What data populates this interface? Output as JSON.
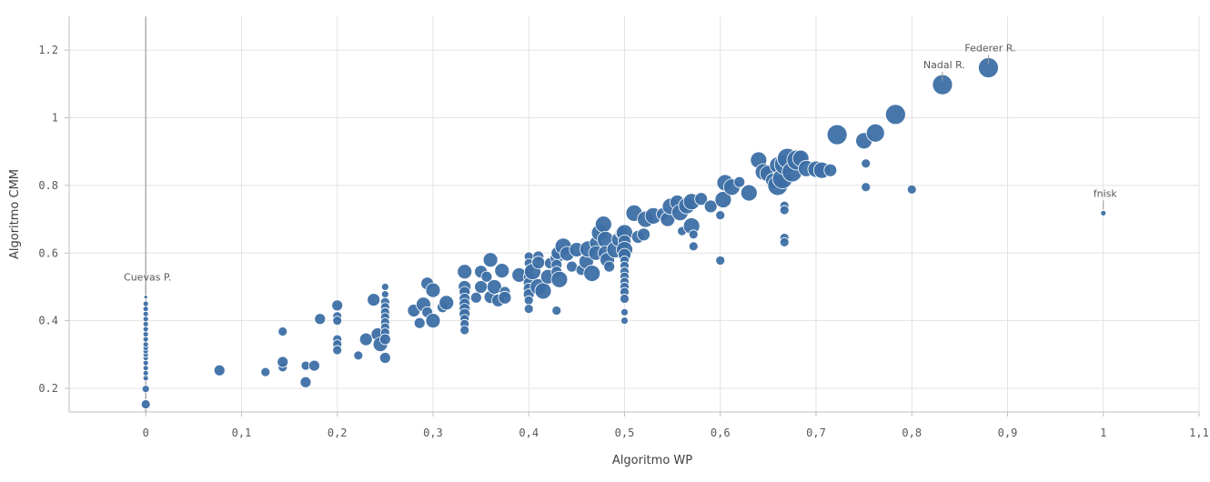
{
  "chart_data": {
    "type": "scatter",
    "title": "",
    "xlabel": "Algoritmo WP",
    "ylabel": "Algoritmo CMM",
    "xlim": [
      -0.08,
      1.1
    ],
    "ylim": [
      0.13,
      1.3
    ],
    "x_ticks": [
      0,
      0.1,
      0.2,
      0.3,
      0.4,
      0.5,
      0.6,
      0.7,
      0.8,
      0.9,
      1,
      1.1
    ],
    "x_tick_labels": [
      "0",
      "0,1",
      "0,2",
      "0,3",
      "0,4",
      "0,5",
      "0,6",
      "0,7",
      "0,8",
      "0,9",
      "1",
      "1,1"
    ],
    "y_ticks": [
      0.2,
      0.4,
      0.6,
      0.8,
      1,
      1.2
    ],
    "y_tick_labels": [
      "0.2",
      "0.4",
      "0.6",
      "0.8",
      "1",
      "1.2"
    ],
    "grid": true,
    "color": "#3d6fa5",
    "labels": [
      {
        "text": "Cuevas P.",
        "x": 0,
        "y": 0.47
      },
      {
        "text": "Nadal R.",
        "x": 0.832,
        "y": 1.098
      },
      {
        "text": "Federer R.",
        "x": 0.88,
        "y": 1.148
      },
      {
        "text": "fnisk",
        "x": 1.0,
        "y": 0.718
      }
    ],
    "points": [
      [
        0,
        0.153,
        5
      ],
      [
        0,
        0.198,
        4
      ],
      [
        0,
        0.23,
        3
      ],
      [
        0,
        0.245,
        3
      ],
      [
        0,
        0.26,
        3
      ],
      [
        0,
        0.275,
        3
      ],
      [
        0,
        0.29,
        3
      ],
      [
        0,
        0.3,
        3
      ],
      [
        0,
        0.31,
        3
      ],
      [
        0,
        0.32,
        3
      ],
      [
        0,
        0.33,
        3
      ],
      [
        0,
        0.345,
        3
      ],
      [
        0,
        0.36,
        3
      ],
      [
        0,
        0.375,
        3
      ],
      [
        0,
        0.39,
        3
      ],
      [
        0,
        0.405,
        3
      ],
      [
        0,
        0.42,
        3
      ],
      [
        0,
        0.435,
        3
      ],
      [
        0,
        0.45,
        3
      ],
      [
        0,
        0.47,
        2
      ],
      [
        0.077,
        0.253,
        6
      ],
      [
        0.125,
        0.248,
        5
      ],
      [
        0.143,
        0.262,
        5
      ],
      [
        0.143,
        0.278,
        6
      ],
      [
        0.143,
        0.368,
        5
      ],
      [
        0.167,
        0.218,
        6
      ],
      [
        0.167,
        0.267,
        5
      ],
      [
        0.176,
        0.267,
        6
      ],
      [
        0.182,
        0.405,
        6
      ],
      [
        0.2,
        0.445,
        6
      ],
      [
        0.2,
        0.413,
        5
      ],
      [
        0.2,
        0.4,
        5
      ],
      [
        0.2,
        0.345,
        5
      ],
      [
        0.2,
        0.33,
        5
      ],
      [
        0.2,
        0.313,
        5
      ],
      [
        0.222,
        0.297,
        5
      ],
      [
        0.23,
        0.345,
        7
      ],
      [
        0.238,
        0.462,
        7
      ],
      [
        0.242,
        0.36,
        7
      ],
      [
        0.245,
        0.33,
        8
      ],
      [
        0.25,
        0.5,
        4
      ],
      [
        0.25,
        0.478,
        4
      ],
      [
        0.25,
        0.455,
        5
      ],
      [
        0.25,
        0.44,
        5
      ],
      [
        0.25,
        0.425,
        5
      ],
      [
        0.25,
        0.41,
        5
      ],
      [
        0.25,
        0.395,
        5
      ],
      [
        0.25,
        0.38,
        5
      ],
      [
        0.25,
        0.365,
        5
      ],
      [
        0.25,
        0.345,
        6
      ],
      [
        0.25,
        0.29,
        6
      ],
      [
        0.28,
        0.43,
        7
      ],
      [
        0.286,
        0.393,
        6
      ],
      [
        0.29,
        0.448,
        8
      ],
      [
        0.294,
        0.51,
        7
      ],
      [
        0.294,
        0.425,
        6
      ],
      [
        0.3,
        0.49,
        8
      ],
      [
        0.3,
        0.4,
        8
      ],
      [
        0.31,
        0.44,
        6
      ],
      [
        0.314,
        0.453,
        8
      ],
      [
        0.333,
        0.545,
        8
      ],
      [
        0.333,
        0.5,
        7
      ],
      [
        0.333,
        0.485,
        6
      ],
      [
        0.333,
        0.465,
        6
      ],
      [
        0.333,
        0.45,
        6
      ],
      [
        0.333,
        0.435,
        6
      ],
      [
        0.333,
        0.42,
        6
      ],
      [
        0.333,
        0.405,
        5
      ],
      [
        0.333,
        0.39,
        5
      ],
      [
        0.333,
        0.372,
        5
      ],
      [
        0.345,
        0.468,
        6
      ],
      [
        0.35,
        0.545,
        7
      ],
      [
        0.35,
        0.5,
        7
      ],
      [
        0.356,
        0.53,
        6
      ],
      [
        0.36,
        0.58,
        8
      ],
      [
        0.36,
        0.47,
        7
      ],
      [
        0.364,
        0.5,
        8
      ],
      [
        0.368,
        0.46,
        7
      ],
      [
        0.372,
        0.548,
        8
      ],
      [
        0.375,
        0.485,
        6
      ],
      [
        0.375,
        0.468,
        7
      ],
      [
        0.39,
        0.535,
        8
      ],
      [
        0.4,
        0.59,
        5
      ],
      [
        0.4,
        0.57,
        5
      ],
      [
        0.4,
        0.55,
        5
      ],
      [
        0.4,
        0.53,
        6
      ],
      [
        0.4,
        0.512,
        6
      ],
      [
        0.4,
        0.495,
        6
      ],
      [
        0.4,
        0.478,
        6
      ],
      [
        0.4,
        0.46,
        5
      ],
      [
        0.4,
        0.435,
        5
      ],
      [
        0.404,
        0.545,
        9
      ],
      [
        0.41,
        0.59,
        6
      ],
      [
        0.41,
        0.572,
        7
      ],
      [
        0.41,
        0.5,
        9
      ],
      [
        0.415,
        0.488,
        9
      ],
      [
        0.42,
        0.53,
        8
      ],
      [
        0.422,
        0.57,
        6
      ],
      [
        0.429,
        0.585,
        7
      ],
      [
        0.429,
        0.565,
        6
      ],
      [
        0.429,
        0.545,
        6
      ],
      [
        0.429,
        0.43,
        5
      ],
      [
        0.43,
        0.6,
        7
      ],
      [
        0.432,
        0.522,
        9
      ],
      [
        0.436,
        0.62,
        9
      ],
      [
        0.44,
        0.598,
        8
      ],
      [
        0.445,
        0.56,
        6
      ],
      [
        0.45,
        0.61,
        8
      ],
      [
        0.455,
        0.55,
        6
      ],
      [
        0.46,
        0.575,
        8
      ],
      [
        0.462,
        0.612,
        9
      ],
      [
        0.466,
        0.54,
        9
      ],
      [
        0.47,
        0.63,
        7
      ],
      [
        0.47,
        0.6,
        8
      ],
      [
        0.474,
        0.66,
        9
      ],
      [
        0.478,
        0.685,
        9
      ],
      [
        0.48,
        0.64,
        9
      ],
      [
        0.48,
        0.6,
        8
      ],
      [
        0.482,
        0.58,
        8
      ],
      [
        0.484,
        0.56,
        6
      ],
      [
        0.49,
        0.61,
        9
      ],
      [
        0.494,
        0.64,
        8
      ],
      [
        0.497,
        0.66,
        7
      ],
      [
        0.5,
        0.66,
        9
      ],
      [
        0.5,
        0.635,
        7
      ],
      [
        0.5,
        0.61,
        9
      ],
      [
        0.5,
        0.595,
        7
      ],
      [
        0.5,
        0.578,
        5
      ],
      [
        0.5,
        0.562,
        5
      ],
      [
        0.5,
        0.545,
        5
      ],
      [
        0.5,
        0.53,
        5
      ],
      [
        0.5,
        0.515,
        5
      ],
      [
        0.5,
        0.5,
        5
      ],
      [
        0.5,
        0.485,
        5
      ],
      [
        0.5,
        0.465,
        5
      ],
      [
        0.5,
        0.425,
        4
      ],
      [
        0.5,
        0.4,
        4
      ],
      [
        0.51,
        0.718,
        9
      ],
      [
        0.514,
        0.648,
        7
      ],
      [
        0.52,
        0.655,
        7
      ],
      [
        0.522,
        0.7,
        9
      ],
      [
        0.53,
        0.71,
        9
      ],
      [
        0.54,
        0.715,
        7
      ],
      [
        0.545,
        0.7,
        8
      ],
      [
        0.548,
        0.738,
        9
      ],
      [
        0.555,
        0.75,
        8
      ],
      [
        0.558,
        0.72,
        9
      ],
      [
        0.56,
        0.665,
        5
      ],
      [
        0.565,
        0.74,
        9
      ],
      [
        0.57,
        0.752,
        9
      ],
      [
        0.57,
        0.68,
        9
      ],
      [
        0.572,
        0.655,
        5
      ],
      [
        0.572,
        0.62,
        5
      ],
      [
        0.58,
        0.76,
        7
      ],
      [
        0.59,
        0.738,
        7
      ],
      [
        0.6,
        0.712,
        5
      ],
      [
        0.6,
        0.578,
        5
      ],
      [
        0.603,
        0.758,
        9
      ],
      [
        0.605,
        0.808,
        9
      ],
      [
        0.612,
        0.795,
        9
      ],
      [
        0.62,
        0.81,
        6
      ],
      [
        0.63,
        0.778,
        9
      ],
      [
        0.64,
        0.875,
        9
      ],
      [
        0.645,
        0.84,
        9
      ],
      [
        0.65,
        0.835,
        9
      ],
      [
        0.655,
        0.815,
        8
      ],
      [
        0.66,
        0.8,
        11
      ],
      [
        0.66,
        0.86,
        9
      ],
      [
        0.665,
        0.82,
        11
      ],
      [
        0.667,
        0.862,
        11
      ],
      [
        0.67,
        0.88,
        11
      ],
      [
        0.675,
        0.84,
        11
      ],
      [
        0.68,
        0.875,
        11
      ],
      [
        0.684,
        0.88,
        9
      ],
      [
        0.69,
        0.85,
        9
      ],
      [
        0.7,
        0.848,
        9
      ],
      [
        0.706,
        0.845,
        9
      ],
      [
        0.715,
        0.845,
        7
      ],
      [
        0.667,
        0.74,
        5
      ],
      [
        0.667,
        0.727,
        5
      ],
      [
        0.667,
        0.645,
        5
      ],
      [
        0.667,
        0.632,
        5
      ],
      [
        0.722,
        0.95,
        11
      ],
      [
        0.75,
        0.932,
        9
      ],
      [
        0.752,
        0.865,
        5
      ],
      [
        0.752,
        0.795,
        5
      ],
      [
        0.762,
        0.955,
        10
      ],
      [
        0.783,
        1.01,
        11
      ],
      [
        0.8,
        0.788,
        5
      ],
      [
        0.832,
        1.098,
        11
      ],
      [
        0.88,
        1.148,
        11
      ],
      [
        1.0,
        0.718,
        3
      ]
    ]
  }
}
